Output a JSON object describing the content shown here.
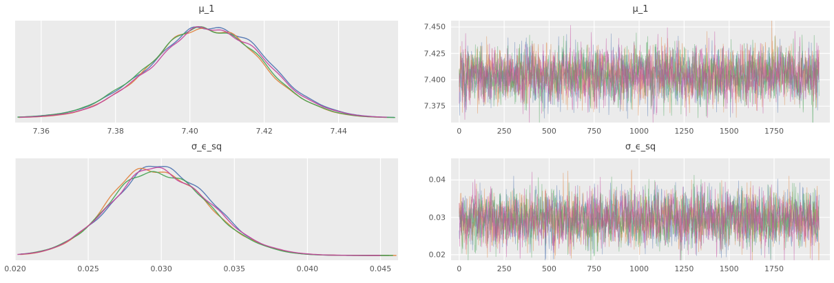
{
  "figure": {
    "background": "#ffffff",
    "panel_bg": "#ebebeb",
    "grid_color": "#ffffff",
    "tick_color": "#555555",
    "title_color": "#3a3a3a",
    "n_chains": 4,
    "chain_colors": [
      "#4c72b0",
      "#e0813d",
      "#44a353",
      "#c2439c"
    ]
  },
  "chart_data": [
    {
      "type": "kde",
      "title": "μ_1",
      "xlim": [
        7.353,
        7.456
      ],
      "xticks": [
        7.36,
        7.38,
        7.4,
        7.42,
        7.44
      ],
      "xtick_labels": [
        "7.36",
        "7.38",
        "7.40",
        "7.42",
        "7.44"
      ],
      "mean": 7.406,
      "sd_left": 0.016,
      "sd_right": 0.014,
      "mean_jitter": 0.0012,
      "n_chains": 4
    },
    {
      "type": "trace",
      "title": "μ_1",
      "xlim": [
        -45,
        2060
      ],
      "xticks": [
        0,
        250,
        500,
        750,
        1000,
        1250,
        1500,
        1750
      ],
      "xtick_labels": [
        "0",
        "250",
        "500",
        "750",
        "1000",
        "1250",
        "1500",
        "1750"
      ],
      "ylim": [
        7.3595,
        7.456
      ],
      "yticks": [
        7.375,
        7.4,
        7.425,
        7.45
      ],
      "ytick_labels": [
        "7.375",
        "7.400",
        "7.425",
        "7.450"
      ],
      "mean": 7.4045,
      "sd": 0.0135,
      "draws": 2000,
      "n_chains": 4
    },
    {
      "type": "kde",
      "title": "σ_ϵ_sq",
      "xlim": [
        0.02,
        0.0462
      ],
      "xticks": [
        0.02,
        0.025,
        0.03,
        0.035,
        0.04,
        0.045
      ],
      "xtick_labels": [
        "0.020",
        "0.025",
        "0.030",
        "0.035",
        "0.040",
        "0.045"
      ],
      "mean": 0.0296,
      "sd_left": 0.0031,
      "sd_right": 0.0036,
      "mean_jitter": 0.0004,
      "n_chains": 4
    },
    {
      "type": "trace",
      "title": "σ_ϵ_sq",
      "xlim": [
        -45,
        2060
      ],
      "xticks": [
        0,
        250,
        500,
        750,
        1000,
        1250,
        1500,
        1750
      ],
      "xtick_labels": [
        "0",
        "250",
        "500",
        "750",
        "1000",
        "1250",
        "1500",
        "1750"
      ],
      "ylim": [
        0.0185,
        0.0458
      ],
      "yticks": [
        0.02,
        0.03,
        0.04
      ],
      "ytick_labels": [
        "0.02",
        "0.03",
        "0.04"
      ],
      "mean": 0.0296,
      "sd": 0.0038,
      "draws": 2000,
      "n_chains": 4
    }
  ]
}
